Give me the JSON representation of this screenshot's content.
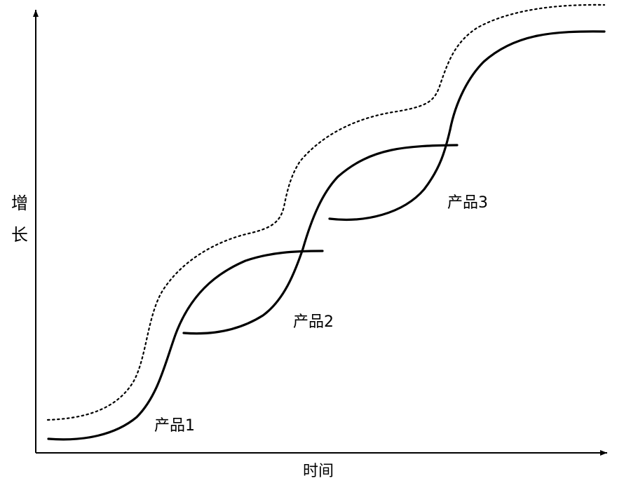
{
  "axes": {
    "x_label": "时间",
    "y_label_chars": [
      "增",
      "长"
    ]
  },
  "labels": {
    "product_1": "产品1",
    "product_2": "产品2",
    "product_3": "产品3"
  }
}
